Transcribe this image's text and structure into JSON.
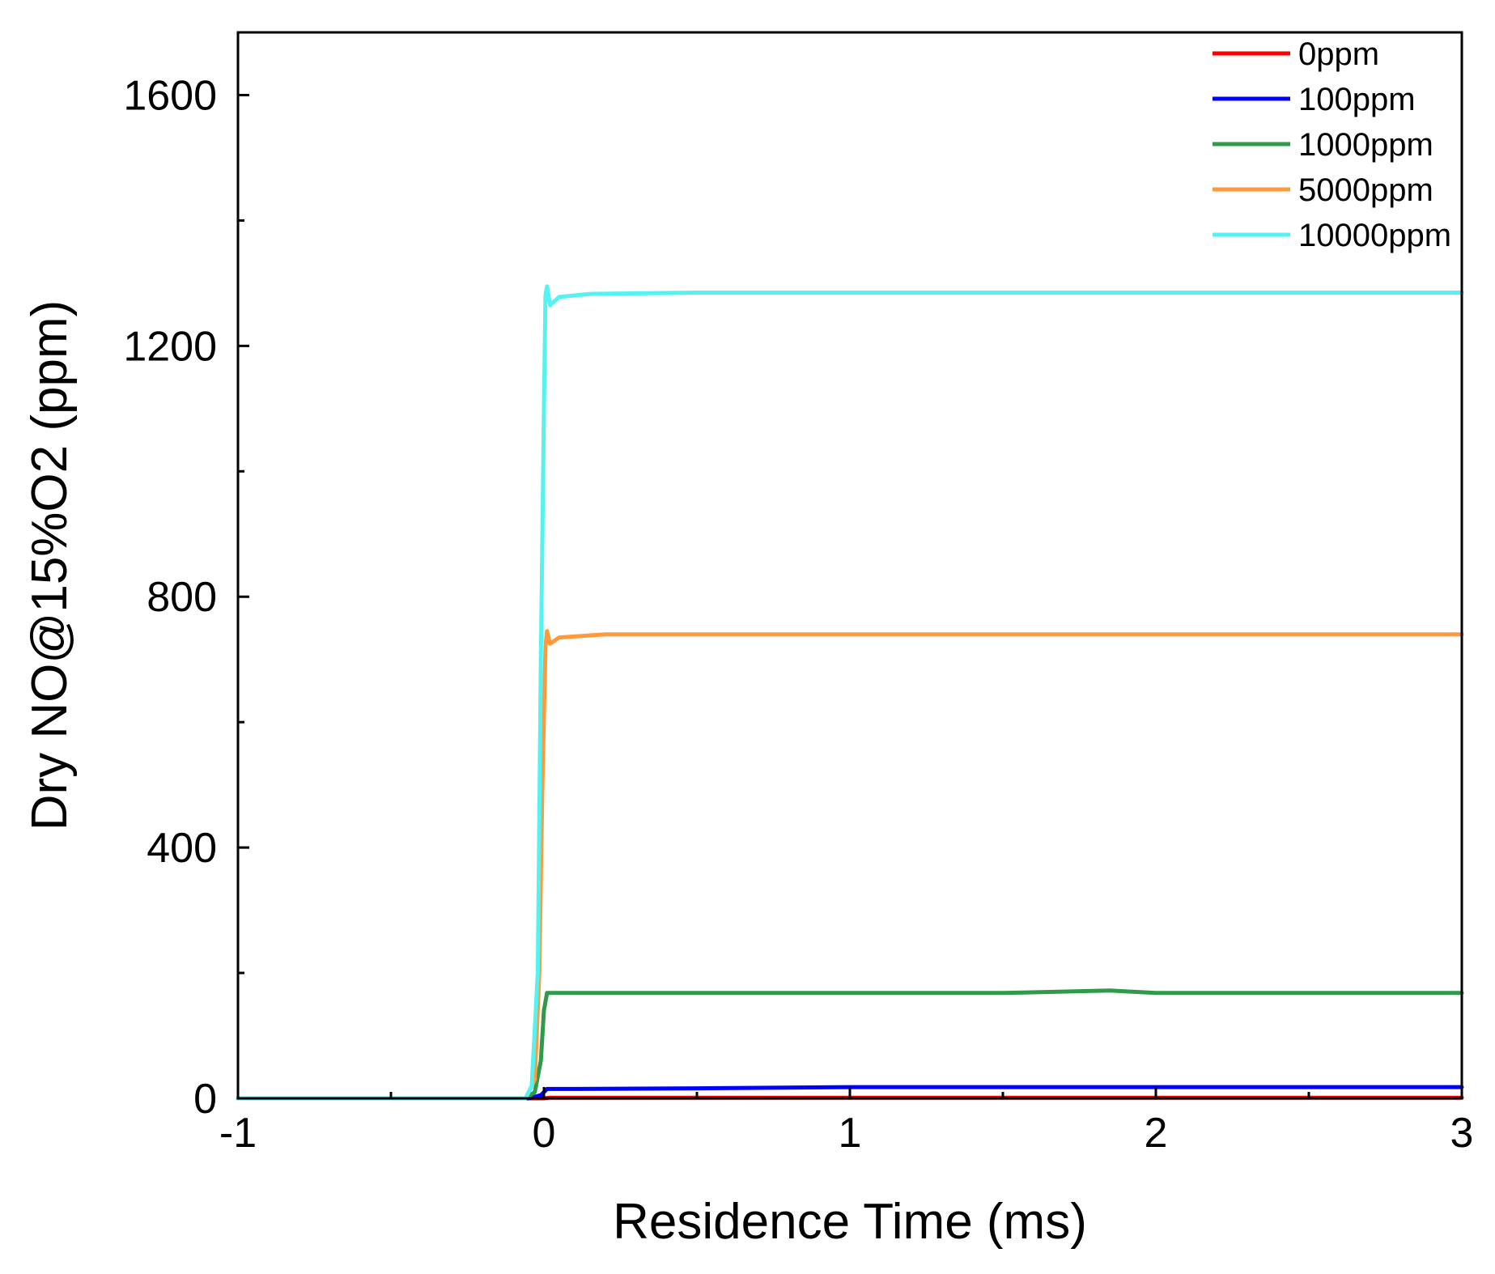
{
  "chart_data": {
    "type": "line",
    "title": "",
    "xlabel": "Residence Time (ms)",
    "ylabel": "Dry NO@15%O2 (ppm)",
    "xlim": [
      -1,
      3
    ],
    "ylim": [
      0,
      1700
    ],
    "x_ticks": [
      -1,
      0,
      1,
      2,
      3
    ],
    "x_tick_labels": [
      "-1",
      "0",
      "1",
      "2",
      "3"
    ],
    "y_ticks": [
      0,
      400,
      800,
      1200,
      1600
    ],
    "y_tick_labels": [
      "0",
      "400",
      "800",
      "1200",
      "1600"
    ],
    "grid": false,
    "legend_position": "top-right",
    "series": [
      {
        "name": "0ppm",
        "color": "#ff0000",
        "points": [
          [
            -1,
            0
          ],
          [
            -0.05,
            0
          ],
          [
            0,
            0
          ],
          [
            0.02,
            1
          ],
          [
            3,
            1
          ]
        ]
      },
      {
        "name": "100ppm",
        "color": "#0000ff",
        "points": [
          [
            -1,
            0
          ],
          [
            -0.05,
            0
          ],
          [
            -0.01,
            5
          ],
          [
            0.01,
            15
          ],
          [
            0.1,
            15
          ],
          [
            0.5,
            16
          ],
          [
            1,
            18
          ],
          [
            2,
            18
          ],
          [
            3,
            18
          ]
        ]
      },
      {
        "name": "1000ppm",
        "color": "#2e9a4a",
        "points": [
          [
            -1,
            0
          ],
          [
            -0.06,
            0
          ],
          [
            -0.03,
            10
          ],
          [
            -0.01,
            60
          ],
          [
            0,
            140
          ],
          [
            0.01,
            168
          ],
          [
            0.05,
            168
          ],
          [
            0.5,
            168
          ],
          [
            1.5,
            168
          ],
          [
            1.85,
            172
          ],
          [
            2,
            168
          ],
          [
            3,
            168
          ]
        ]
      },
      {
        "name": "5000ppm",
        "color": "#ff9a3c",
        "points": [
          [
            -1,
            0
          ],
          [
            -0.06,
            0
          ],
          [
            -0.03,
            30
          ],
          [
            -0.015,
            200
          ],
          [
            -0.005,
            500
          ],
          [
            0.005,
            720
          ],
          [
            0.01,
            745
          ],
          [
            0.02,
            725
          ],
          [
            0.05,
            735
          ],
          [
            0.2,
            740
          ],
          [
            1,
            740
          ],
          [
            3,
            740
          ]
        ]
      },
      {
        "name": "10000ppm",
        "color": "#55f2f2",
        "points": [
          [
            -1,
            0
          ],
          [
            -0.06,
            0
          ],
          [
            -0.04,
            20
          ],
          [
            -0.02,
            200
          ],
          [
            -0.01,
            700
          ],
          [
            0,
            1100
          ],
          [
            0.005,
            1280
          ],
          [
            0.01,
            1295
          ],
          [
            0.02,
            1265
          ],
          [
            0.05,
            1278
          ],
          [
            0.15,
            1283
          ],
          [
            0.5,
            1285
          ],
          [
            1,
            1285
          ],
          [
            3,
            1285
          ]
        ]
      }
    ]
  }
}
